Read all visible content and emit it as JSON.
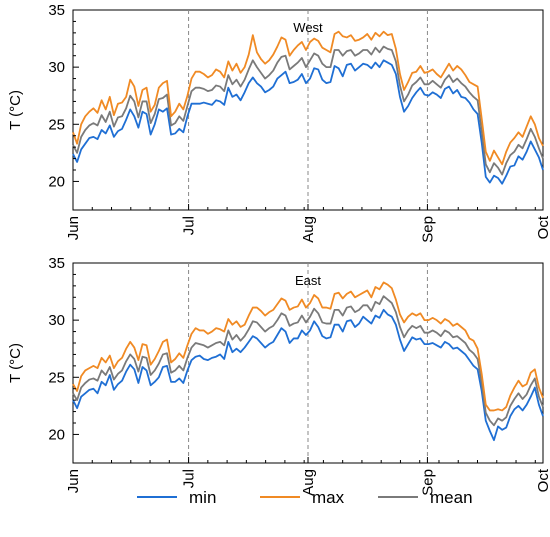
{
  "chart_data": [
    {
      "type": "line",
      "title": "West",
      "ylabel": "T (°C)",
      "xlabel": "",
      "ylim": [
        17.5,
        35
      ],
      "yticks": [
        20,
        25,
        30,
        35
      ],
      "xticks": [
        "Jun",
        "Jul",
        "Aug",
        "Sep",
        "Oct"
      ],
      "grid": false,
      "vlines_at_months": [
        "Jul",
        "Aug",
        "Sep"
      ],
      "series": [
        {
          "name": "min",
          "color": "#1f6fd4",
          "values": [
            22.4,
            21.7,
            22.8,
            23.3,
            23.8,
            23.9,
            23.7,
            24.5,
            24.2,
            24.9,
            23.9,
            24.4,
            24.6,
            25.4,
            26.3,
            25.7,
            24.7,
            26.1,
            25.9,
            24.1,
            25.0,
            26.3,
            26.1,
            26.4,
            24.1,
            24.2,
            24.6,
            24.3,
            25.7,
            26.8,
            26.8,
            26.8,
            26.9,
            26.8,
            26.7,
            27.1,
            27.0,
            26.7,
            28.2,
            27.4,
            27.6,
            27.1,
            27.8,
            28.6,
            29.1,
            28.6,
            28.3,
            27.8,
            28.0,
            28.3,
            29.0,
            29.3,
            29.6,
            28.6,
            28.7,
            28.9,
            29.4,
            28.6,
            29.0,
            29.9,
            29.8,
            28.9,
            28.6,
            28.7,
            30.1,
            29.9,
            29.2,
            30.2,
            30.3,
            29.7,
            30.0,
            30.3,
            30.2,
            29.9,
            30.4,
            30.0,
            30.6,
            30.4,
            30.2,
            29.4,
            27.4,
            26.1,
            26.6,
            27.3,
            27.8,
            28.2,
            27.6,
            27.5,
            27.8,
            27.6,
            27.3,
            28.1,
            28.3,
            27.7,
            28.0,
            27.4,
            27.3,
            26.9,
            26.3,
            25.9,
            23.4,
            20.4,
            19.9,
            20.5,
            20.3,
            19.8,
            20.5,
            21.3,
            21.4,
            22.2,
            21.9,
            22.6,
            23.5,
            22.8,
            22.1,
            21.0
          ]
        },
        {
          "name": "max",
          "color": "#f08a24",
          "values": [
            24.3,
            23.3,
            25.0,
            25.7,
            26.1,
            26.4,
            26.0,
            27.1,
            26.3,
            27.4,
            25.8,
            26.8,
            26.9,
            27.4,
            28.9,
            28.3,
            26.6,
            28.0,
            28.2,
            26.1,
            26.7,
            28.2,
            28.6,
            28.8,
            25.7,
            26.1,
            26.8,
            26.3,
            27.5,
            29.0,
            29.6,
            29.6,
            29.4,
            29.1,
            29.3,
            29.8,
            29.6,
            29.1,
            30.5,
            29.7,
            30.3,
            29.5,
            30.0,
            31.1,
            32.8,
            31.3,
            30.7,
            30.3,
            30.6,
            31.1,
            31.8,
            32.6,
            32.4,
            31.0,
            31.5,
            31.9,
            32.2,
            31.5,
            32.2,
            32.5,
            32.3,
            31.7,
            31.5,
            31.3,
            32.9,
            33.1,
            32.7,
            32.6,
            32.8,
            32.3,
            32.4,
            32.6,
            32.9,
            32.4,
            33.0,
            32.7,
            33.1,
            32.8,
            32.9,
            31.6,
            29.4,
            28.0,
            28.7,
            29.5,
            29.6,
            30.1,
            29.5,
            29.6,
            29.8,
            29.4,
            29.1,
            29.7,
            30.3,
            29.7,
            30.1,
            29.8,
            29.3,
            28.7,
            28.5,
            28.3,
            25.5,
            22.6,
            21.8,
            22.7,
            22.1,
            21.5,
            22.6,
            23.4,
            23.8,
            24.3,
            23.9,
            24.8,
            25.7,
            25.0,
            23.8,
            23.1
          ]
        },
        {
          "name": "mean",
          "color": "#7a7a7a",
          "values": [
            23.2,
            22.5,
            23.9,
            24.5,
            24.9,
            25.1,
            24.9,
            25.8,
            25.2,
            26.1,
            24.8,
            25.6,
            25.7,
            26.4,
            27.5,
            27.0,
            25.6,
            27.0,
            27.0,
            25.1,
            25.9,
            27.2,
            27.3,
            27.6,
            24.9,
            25.1,
            25.7,
            25.3,
            26.6,
            27.9,
            28.2,
            28.2,
            28.1,
            27.9,
            28.0,
            28.4,
            28.3,
            27.9,
            29.3,
            28.5,
            28.9,
            28.3,
            28.9,
            29.8,
            30.6,
            30.0,
            29.5,
            29.0,
            29.3,
            29.7,
            30.4,
            30.9,
            31.0,
            29.8,
            30.1,
            30.4,
            30.8,
            30.0,
            30.6,
            31.2,
            31.0,
            30.3,
            30.0,
            30.0,
            31.5,
            31.5,
            31.0,
            31.4,
            31.5,
            31.0,
            31.2,
            31.5,
            31.5,
            31.1,
            31.7,
            31.3,
            31.8,
            31.6,
            31.5,
            30.5,
            28.4,
            27.0,
            27.6,
            28.4,
            28.7,
            29.1,
            28.5,
            28.5,
            28.8,
            28.5,
            28.2,
            28.9,
            29.3,
            28.7,
            29.0,
            28.6,
            28.3,
            27.8,
            27.4,
            27.1,
            24.4,
            21.5,
            20.8,
            21.6,
            21.2,
            20.6,
            21.6,
            22.3,
            22.6,
            23.2,
            22.9,
            23.7,
            24.6,
            23.9,
            22.9,
            22.0
          ]
        }
      ]
    },
    {
      "type": "line",
      "title": "East",
      "ylabel": "T (°C)",
      "xlabel": "",
      "ylim": [
        17.5,
        35
      ],
      "yticks": [
        20,
        25,
        30,
        35
      ],
      "xticks": [
        "Jun",
        "Jul",
        "Aug",
        "Sep",
        "Oct"
      ],
      "grid": false,
      "vlines_at_months": [
        "Jul",
        "Aug",
        "Sep"
      ],
      "series": [
        {
          "name": "min",
          "color": "#1f6fd4",
          "values": [
            23.0,
            22.3,
            23.3,
            23.6,
            23.9,
            24.0,
            23.6,
            24.6,
            24.3,
            25.2,
            23.9,
            24.4,
            24.7,
            25.5,
            26.1,
            25.7,
            24.5,
            25.9,
            25.6,
            24.3,
            24.6,
            25.0,
            25.9,
            26.0,
            24.6,
            24.6,
            24.9,
            24.5,
            25.6,
            26.5,
            26.8,
            26.9,
            26.6,
            26.5,
            26.7,
            26.8,
            27.0,
            26.6,
            28.1,
            27.2,
            27.5,
            27.2,
            27.6,
            28.1,
            28.6,
            28.4,
            28.0,
            27.6,
            27.9,
            28.1,
            28.7,
            29.3,
            29.0,
            28.0,
            28.4,
            28.4,
            29.1,
            28.7,
            29.1,
            29.9,
            29.4,
            28.6,
            28.4,
            28.5,
            29.6,
            29.6,
            29.0,
            29.9,
            30.0,
            29.4,
            29.7,
            30.3,
            30.0,
            29.7,
            30.4,
            30.2,
            30.9,
            30.5,
            30.3,
            29.6,
            28.3,
            27.3,
            27.9,
            28.5,
            28.3,
            28.4,
            27.9,
            27.9,
            28.0,
            27.8,
            27.6,
            28.1,
            27.9,
            27.5,
            27.6,
            27.3,
            27.0,
            26.5,
            26.0,
            25.7,
            23.8,
            21.2,
            20.3,
            19.5,
            20.7,
            20.4,
            20.6,
            21.6,
            22.2,
            22.5,
            22.1,
            22.6,
            23.3,
            24.1,
            22.6,
            21.6
          ]
        },
        {
          "name": "max",
          "color": "#f08a24",
          "values": [
            24.4,
            23.8,
            25.1,
            25.6,
            25.8,
            26.0,
            25.8,
            26.7,
            26.3,
            26.9,
            25.8,
            26.4,
            26.7,
            27.5,
            28.1,
            27.6,
            26.5,
            27.9,
            27.8,
            26.1,
            26.6,
            27.3,
            28.1,
            28.3,
            26.3,
            26.6,
            27.1,
            26.7,
            27.8,
            28.8,
            29.3,
            29.1,
            29.1,
            28.8,
            29.0,
            29.3,
            29.2,
            29.0,
            30.1,
            29.6,
            29.9,
            29.4,
            29.6,
            30.4,
            31.1,
            31.1,
            30.8,
            30.4,
            30.7,
            30.9,
            31.4,
            31.9,
            31.7,
            30.9,
            31.1,
            31.2,
            31.8,
            31.1,
            31.5,
            32.2,
            31.9,
            31.1,
            31.1,
            31.0,
            32.3,
            32.4,
            31.9,
            32.3,
            32.5,
            32.0,
            32.2,
            32.4,
            32.6,
            32.0,
            32.9,
            32.7,
            33.3,
            33.1,
            32.8,
            31.8,
            30.5,
            29.8,
            30.3,
            30.6,
            30.4,
            30.6,
            30.0,
            30.0,
            30.2,
            30.0,
            29.7,
            30.1,
            29.9,
            29.5,
            29.7,
            29.4,
            29.1,
            28.4,
            28.2,
            27.5,
            25.3,
            22.6,
            22.1,
            22.1,
            22.2,
            22.1,
            22.4,
            23.4,
            24.1,
            24.7,
            24.2,
            24.4,
            25.4,
            25.7,
            24.1,
            23.2
          ]
        },
        {
          "name": "mean",
          "color": "#7a7a7a",
          "values": [
            23.6,
            23.0,
            24.1,
            24.5,
            24.8,
            24.9,
            24.7,
            25.6,
            25.2,
            25.9,
            24.8,
            25.3,
            25.6,
            26.4,
            27.0,
            26.6,
            25.5,
            26.8,
            26.7,
            25.2,
            25.6,
            26.2,
            27.0,
            27.1,
            25.4,
            25.6,
            26.0,
            25.6,
            26.7,
            27.6,
            28.0,
            27.9,
            27.8,
            27.6,
            27.8,
            28.0,
            28.1,
            27.8,
            29.1,
            28.3,
            28.7,
            28.2,
            28.6,
            29.2,
            29.9,
            29.8,
            29.4,
            29.0,
            29.3,
            29.5,
            30.0,
            30.6,
            30.4,
            29.5,
            29.7,
            29.8,
            30.4,
            29.8,
            30.3,
            31.0,
            30.6,
            29.8,
            29.7,
            29.7,
            30.9,
            30.9,
            30.4,
            31.1,
            31.2,
            30.7,
            30.9,
            31.3,
            31.3,
            30.8,
            31.6,
            31.4,
            32.1,
            31.8,
            31.5,
            30.7,
            29.4,
            28.5,
            29.1,
            29.5,
            29.3,
            29.5,
            28.9,
            28.9,
            29.1,
            28.9,
            28.6,
            29.1,
            28.9,
            28.5,
            28.6,
            28.3,
            28.0,
            27.4,
            27.1,
            26.6,
            24.5,
            21.9,
            21.2,
            20.8,
            21.4,
            21.2,
            21.5,
            22.5,
            23.1,
            23.6,
            23.1,
            23.5,
            24.3,
            24.9,
            23.3,
            22.4
          ]
        }
      ]
    }
  ],
  "legend": [
    {
      "label": "min",
      "color": "#1f6fd4"
    },
    {
      "label": "max",
      "color": "#f08a24"
    },
    {
      "label": "mean",
      "color": "#7a7a7a"
    }
  ]
}
